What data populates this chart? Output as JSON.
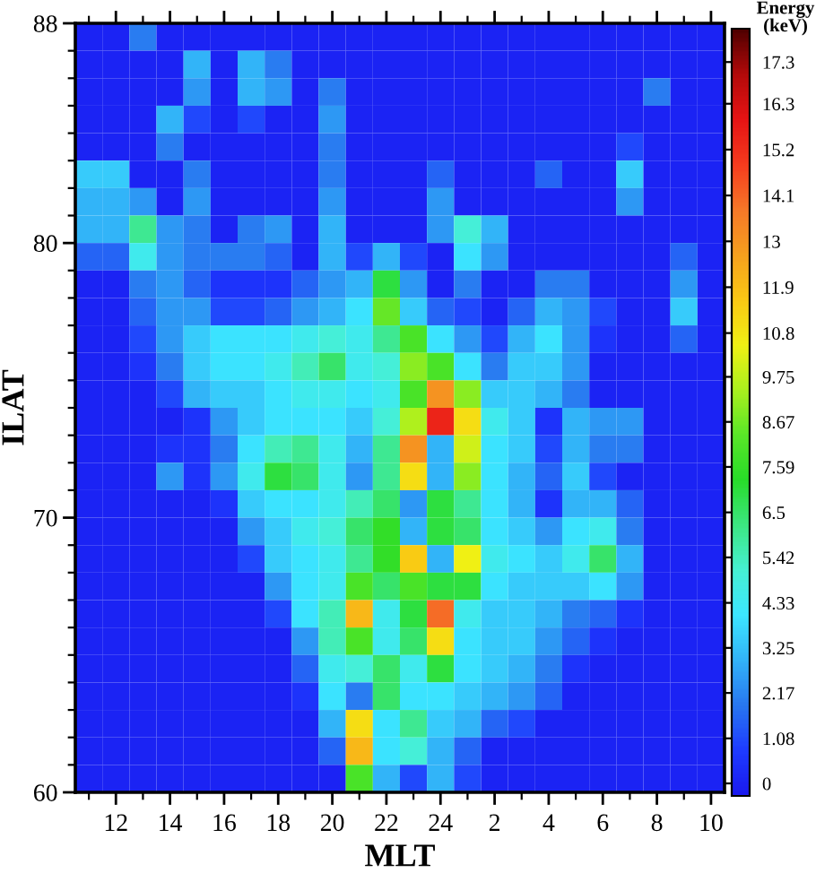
{
  "chart_data": {
    "type": "heatmap",
    "xlabel": "MLT",
    "ylabel": "ILAT",
    "clabel": "Energy\n(keV)",
    "categories": [
      null,
      "12",
      null,
      "14",
      null,
      "16",
      null,
      "18",
      null,
      "20",
      null,
      "22",
      null,
      "24",
      null,
      "2",
      null,
      "4",
      null,
      "6",
      null,
      "8",
      null,
      "10"
    ],
    "ylim": [
      60,
      88
    ],
    "yticks": [
      60,
      {
        "value": 61,
        "label": null
      },
      {
        "value": 62,
        "label": null
      },
      {
        "value": 63,
        "label": null
      },
      {
        "value": 64,
        "label": null
      },
      {
        "value": 65,
        "label": null
      },
      {
        "value": 66,
        "label": null
      },
      {
        "value": 67,
        "label": null
      },
      {
        "value": 68,
        "label": null
      },
      {
        "value": 69,
        "label": null
      },
      70,
      {
        "value": 71,
        "label": null
      },
      {
        "value": 72,
        "label": null
      },
      {
        "value": 73,
        "label": null
      },
      {
        "value": 74,
        "label": null
      },
      {
        "value": 75,
        "label": null
      },
      {
        "value": 76,
        "label": null
      },
      {
        "value": 77,
        "label": null
      },
      {
        "value": 78,
        "label": null
      },
      {
        "value": 79,
        "label": null
      },
      80,
      {
        "value": 81,
        "label": null
      },
      {
        "value": 82,
        "label": null
      },
      {
        "value": 83,
        "label": null
      },
      {
        "value": 84,
        "label": null
      },
      {
        "value": 85,
        "label": null
      },
      {
        "value": 86,
        "label": null
      },
      {
        "value": 87,
        "label": null
      },
      88
    ],
    "clim": [
      -0.3,
      18.1
    ],
    "cticks": [
      0,
      1.08,
      2.17,
      3.25,
      4.33,
      5.42,
      6.5,
      7.59,
      8.67,
      9.75,
      10.8,
      11.9,
      13,
      14.1,
      15.2,
      16.3,
      17.3
    ],
    "cells": [
      [
        0,
        0,
        2,
        0,
        0,
        0,
        0,
        0,
        0,
        0,
        0,
        0,
        0,
        0,
        0,
        0,
        0,
        0,
        0,
        0,
        0,
        0,
        0,
        0
      ],
      [
        0,
        0,
        0,
        0,
        3,
        0,
        3,
        2,
        0,
        0,
        0,
        0,
        0,
        0,
        0,
        0,
        0,
        0,
        0,
        0,
        0,
        0,
        0,
        0
      ],
      [
        0,
        0,
        0,
        0,
        2.5,
        0,
        3,
        2.5,
        0,
        2,
        0,
        0,
        0,
        0,
        0,
        0,
        0,
        0,
        0,
        0,
        0,
        2,
        0,
        0
      ],
      [
        0,
        0,
        0,
        3,
        1,
        0,
        1,
        0,
        0,
        2.5,
        0,
        0,
        0,
        0,
        0,
        0,
        0,
        0,
        0,
        0,
        0,
        0,
        0,
        0
      ],
      [
        0,
        0,
        0,
        2,
        0,
        0,
        0,
        0,
        0,
        2,
        0,
        0,
        0,
        0,
        0,
        0,
        0,
        0,
        0,
        0,
        1,
        0,
        0,
        0
      ],
      [
        3.5,
        3.5,
        0,
        0,
        2,
        0,
        0,
        0,
        0,
        2,
        0,
        0,
        0,
        1.5,
        0,
        0,
        0,
        1.5,
        0,
        0,
        3.5,
        0,
        0,
        0
      ],
      [
        3,
        3,
        2.5,
        0,
        2.5,
        0,
        0,
        0,
        0,
        2.5,
        0,
        0,
        0,
        2.5,
        0,
        0,
        0,
        0,
        0,
        0,
        2.5,
        0,
        0,
        0
      ],
      [
        3,
        3,
        6,
        2.5,
        2,
        0,
        2,
        2.5,
        0,
        3,
        0,
        0,
        0,
        2.5,
        5,
        3,
        0,
        0,
        0,
        0,
        0,
        0,
        0,
        0
      ],
      [
        1.5,
        1.5,
        4.5,
        2.5,
        2,
        2,
        2,
        1.5,
        0,
        3,
        1,
        3,
        1,
        0,
        4,
        2.5,
        0,
        0,
        0,
        0,
        0,
        0,
        1.5,
        0
      ],
      [
        0,
        0,
        2,
        2.5,
        1.5,
        0.5,
        0.5,
        0.5,
        1.5,
        2.5,
        3,
        7,
        2.5,
        0,
        2,
        0,
        0,
        2,
        2,
        0,
        0,
        0,
        2.5,
        0
      ],
      [
        0,
        0,
        1.5,
        2.5,
        2.5,
        1,
        1,
        1.5,
        2.5,
        3,
        4,
        8.5,
        3.5,
        1.5,
        1,
        0,
        1.5,
        3,
        2.5,
        1,
        0,
        0,
        3.5,
        0
      ],
      [
        0,
        0,
        1,
        2.5,
        3.5,
        4,
        4,
        4,
        4.5,
        5,
        4.5,
        6,
        8,
        4,
        2.5,
        1,
        3,
        4,
        2.5,
        0.5,
        0,
        0,
        1.5,
        0
      ],
      [
        0,
        0,
        0.5,
        2,
        3.5,
        4,
        4,
        4.5,
        5.5,
        6.5,
        4.5,
        5,
        9,
        8,
        4,
        2,
        3.5,
        3.5,
        2.5,
        0,
        0,
        0,
        0,
        0
      ],
      [
        0,
        0,
        0,
        1,
        3,
        3.5,
        3.5,
        4,
        4.5,
        4.5,
        4,
        4.5,
        8,
        13,
        9,
        3.5,
        3.5,
        3,
        2,
        0,
        0,
        0,
        0,
        0
      ],
      [
        0,
        0,
        0,
        0,
        0.5,
        2.5,
        3.5,
        4,
        4,
        4,
        3.5,
        5,
        9.5,
        15.5,
        11,
        4.5,
        3.5,
        0.5,
        3,
        2.5,
        2.5,
        0,
        0,
        0
      ],
      [
        0,
        0,
        0,
        0.5,
        0.5,
        2,
        4,
        5.5,
        6,
        4.5,
        3,
        6,
        13,
        3,
        10,
        4,
        3.5,
        1,
        3,
        2,
        2,
        0,
        0,
        0
      ],
      [
        0,
        0,
        0,
        2.5,
        0.5,
        2.5,
        4.5,
        7,
        6.5,
        4.5,
        2.5,
        6,
        11,
        3,
        9,
        4,
        3,
        1.5,
        3.5,
        1,
        0,
        0,
        0,
        0
      ],
      [
        0,
        0,
        0,
        0,
        0,
        0.5,
        3.5,
        4,
        4,
        4.5,
        5.5,
        6.5,
        2.5,
        7,
        6,
        4,
        3,
        0.5,
        3,
        3,
        1.5,
        0,
        0,
        0
      ],
      [
        0,
        0,
        0,
        0,
        0,
        0,
        2.5,
        3.5,
        4.5,
        5,
        6.5,
        7.5,
        3,
        7,
        6.5,
        4,
        3.5,
        2.5,
        4,
        4.5,
        2,
        0,
        0,
        0
      ],
      [
        0,
        0,
        0,
        0,
        0,
        0,
        1,
        3.5,
        4,
        4.5,
        6,
        7.5,
        11.5,
        3,
        10.5,
        4.5,
        4,
        3.5,
        4.5,
        6.5,
        3,
        0,
        0,
        0
      ],
      [
        0,
        0,
        0,
        0,
        0,
        0,
        0,
        2.5,
        4,
        4.5,
        8,
        6.5,
        8,
        7,
        7,
        4,
        3.5,
        3.5,
        3.5,
        4,
        2.5,
        0,
        0,
        0
      ],
      [
        0,
        0,
        0,
        0,
        0,
        0,
        0,
        1,
        4,
        5.5,
        12,
        4.5,
        7,
        14,
        4.5,
        3.5,
        3.5,
        3,
        2,
        1.5,
        0.5,
        0,
        0,
        0
      ],
      [
        0,
        0,
        0,
        0,
        0,
        0,
        0,
        0,
        2.5,
        5.5,
        8,
        4.5,
        6.5,
        11,
        4,
        3.5,
        3.5,
        2.5,
        1.5,
        0.5,
        0,
        0,
        0,
        0
      ],
      [
        0,
        0,
        0,
        0,
        0,
        0,
        0,
        0,
        1.5,
        4.5,
        5,
        6.5,
        4.5,
        7,
        4,
        3.5,
        3,
        2,
        0.5,
        0,
        0,
        0,
        0,
        0
      ],
      [
        0,
        0,
        0,
        0,
        0,
        0,
        0,
        0,
        0.5,
        4,
        2,
        6.5,
        4,
        4,
        3.5,
        3,
        2.5,
        1.5,
        0,
        0,
        0,
        0,
        0,
        0
      ],
      [
        0,
        0,
        0,
        0,
        0,
        0,
        0,
        0,
        0,
        3,
        11,
        4,
        6,
        3.5,
        3,
        1.5,
        1,
        0,
        0,
        0,
        0,
        0,
        0,
        0
      ],
      [
        0,
        0,
        0,
        0,
        0,
        0,
        0,
        0,
        0,
        1.5,
        12,
        4,
        5,
        3,
        1.5,
        0,
        0,
        0,
        0,
        0,
        0,
        0,
        0,
        0
      ],
      [
        0,
        0,
        0,
        0,
        0,
        0,
        0,
        0,
        0,
        0,
        8,
        3,
        1,
        3,
        1,
        0,
        0,
        0,
        0,
        0,
        0,
        0,
        0,
        0
      ]
    ]
  }
}
